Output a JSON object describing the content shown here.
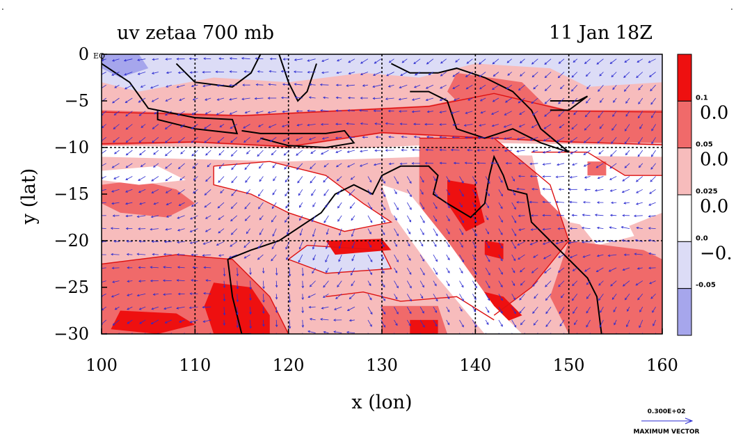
{
  "chart_data": {
    "type": "heatmap",
    "title": "uv zetaa 700 mb",
    "subtitle": "11 Jan 18Z",
    "xlabel": "x (lon)",
    "ylabel": "y (lat)",
    "xlim": [
      100,
      160
    ],
    "ylim": [
      -30,
      0
    ],
    "x_ticks": [
      "100",
      "110",
      "120",
      "130",
      "140",
      "150",
      "160"
    ],
    "y_ticks": [
      "0",
      "−5",
      "−10",
      "−15",
      "−20",
      "−25",
      "−30"
    ],
    "corner_label": "EQ",
    "grid": true,
    "overlay": "wind vectors (u, v) with coastline",
    "colorbar": {
      "levels_small": [
        "0.1",
        "0.05",
        "0.025",
        "0.0",
        "-0.05"
      ],
      "levels_big": [
        "0.0",
        "0.0",
        "0.0",
        "−0."
      ],
      "colors": [
        "#ee1010",
        "#f06a6a",
        "#f7bcbc",
        "#ffffff",
        "#dcdcf6",
        "#a6a6ec"
      ]
    },
    "max_vector": {
      "value": "0.300E+02",
      "label": "MAXIMUM VECTOR"
    },
    "colors": {
      "strong_pos": "#ee1010",
      "mid_pos": "#f06a6a",
      "weak_pos": "#f7bcbc",
      "zero": "#ffffff",
      "weak_neg": "#dcdcf6",
      "strong_neg": "#a6a6ec",
      "contour": "#dd1111",
      "vector": "#2b2bd0",
      "coast": "#000000"
    }
  }
}
